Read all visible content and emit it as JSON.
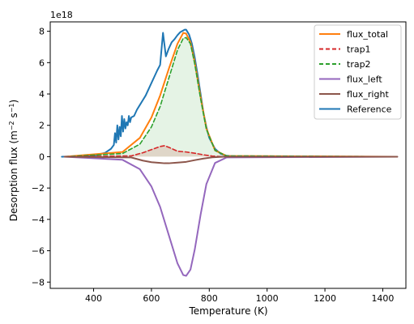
{
  "chart_data": {
    "type": "line",
    "xlabel": "Temperature (K)",
    "ylabel_main": "Desorption flux (m",
    "ylabel_exp1": "−2",
    "ylabel_mid": " s",
    "ylabel_exp2": "−1",
    "ylabel_end": ")",
    "offset_text": "1e18",
    "xlim": [
      250,
      1480
    ],
    "ylim": [
      -8.4,
      8.6
    ],
    "x_ticks": [
      400,
      600,
      800,
      1000,
      1200,
      1400
    ],
    "y_ticks": [
      -8,
      -6,
      -4,
      -2,
      0,
      2,
      4,
      6,
      8
    ],
    "y_tick_labels": [
      "−8",
      "−6",
      "−4",
      "−2",
      "0",
      "2",
      "4",
      "6",
      "8"
    ],
    "legend_position": "top-right",
    "fills": [
      {
        "of": "trap1",
        "color": "#d62728",
        "opacity": 0.15
      },
      {
        "of": "trap2",
        "color": "#2ca02c",
        "opacity": 0.12
      }
    ],
    "series": [
      {
        "name": "flux_total",
        "color": "#ff7f0e",
        "style": "solid",
        "x": [
          300,
          500,
          560,
          600,
          630,
          660,
          690,
          710,
          720,
          735,
          750,
          770,
          790,
          820,
          860,
          1450
        ],
        "y": [
          0,
          0.3,
          1.2,
          2.5,
          3.9,
          5.6,
          7.2,
          7.9,
          7.85,
          7.3,
          6.0,
          3.8,
          1.8,
          0.4,
          0.05,
          0
        ]
      },
      {
        "name": "trap1",
        "color": "#d62728",
        "style": "dashed",
        "x": [
          300,
          530,
          570,
          600,
          630,
          645,
          660,
          690,
          720,
          750,
          780,
          810,
          850,
          1450
        ],
        "y": [
          0,
          0.05,
          0.25,
          0.45,
          0.65,
          0.7,
          0.6,
          0.35,
          0.3,
          0.22,
          0.12,
          0.04,
          0,
          0
        ]
      },
      {
        "name": "trap2",
        "color": "#2ca02c",
        "style": "dashed",
        "x": [
          300,
          500,
          560,
          600,
          630,
          660,
          690,
          710,
          720,
          735,
          750,
          770,
          790,
          820,
          860,
          1450
        ],
        "y": [
          0,
          0.2,
          0.8,
          1.9,
          3.2,
          5.0,
          6.8,
          7.55,
          7.6,
          7.2,
          5.9,
          3.7,
          1.75,
          0.4,
          0.05,
          0
        ]
      },
      {
        "name": "flux_left",
        "color": "#9467bd",
        "style": "solid",
        "x": [
          300,
          500,
          560,
          600,
          630,
          660,
          690,
          710,
          720,
          735,
          750,
          770,
          790,
          820,
          860,
          1450
        ],
        "y": [
          0,
          -0.2,
          -0.8,
          -1.9,
          -3.2,
          -5.0,
          -6.8,
          -7.55,
          -7.6,
          -7.2,
          -5.9,
          -3.7,
          -1.75,
          -0.4,
          -0.05,
          0
        ]
      },
      {
        "name": "flux_right",
        "color": "#8c564b",
        "style": "solid",
        "x": [
          300,
          530,
          570,
          600,
          630,
          645,
          660,
          690,
          720,
          750,
          780,
          810,
          850,
          1450
        ],
        "y": [
          0,
          -0.05,
          -0.25,
          -0.35,
          -0.4,
          -0.42,
          -0.42,
          -0.38,
          -0.33,
          -0.22,
          -0.12,
          -0.04,
          0,
          0
        ]
      },
      {
        "name": "Reference",
        "color": "#1f77b4",
        "style": "solid",
        "x": [
          290,
          400,
          440,
          460,
          470,
          474,
          478,
          482,
          486,
          490,
          494,
          498,
          502,
          506,
          510,
          514,
          518,
          522,
          526,
          530,
          540,
          550,
          560,
          570,
          580,
          590,
          600,
          610,
          620,
          630,
          640,
          650,
          660,
          670,
          680,
          690,
          700,
          710,
          715,
          720,
          730,
          740,
          750,
          760,
          770,
          780,
          790,
          800,
          820,
          840,
          860,
          900,
          1000,
          1450
        ],
        "y": [
          0,
          0.05,
          0.25,
          0.5,
          0.75,
          1.5,
          0.9,
          2.0,
          1.1,
          1.9,
          1.3,
          2.6,
          1.6,
          2.4,
          1.8,
          2.2,
          2.0,
          2.6,
          2.2,
          2.5,
          2.6,
          3.0,
          3.3,
          3.6,
          3.9,
          4.3,
          4.7,
          5.1,
          5.5,
          5.85,
          7.9,
          6.4,
          6.9,
          7.3,
          7.5,
          7.75,
          7.95,
          8.05,
          8.1,
          8.1,
          7.8,
          7.2,
          6.3,
          5.2,
          4.0,
          2.8,
          1.9,
          1.2,
          0.5,
          0.18,
          0.06,
          0.01,
          0,
          0
        ]
      }
    ]
  }
}
